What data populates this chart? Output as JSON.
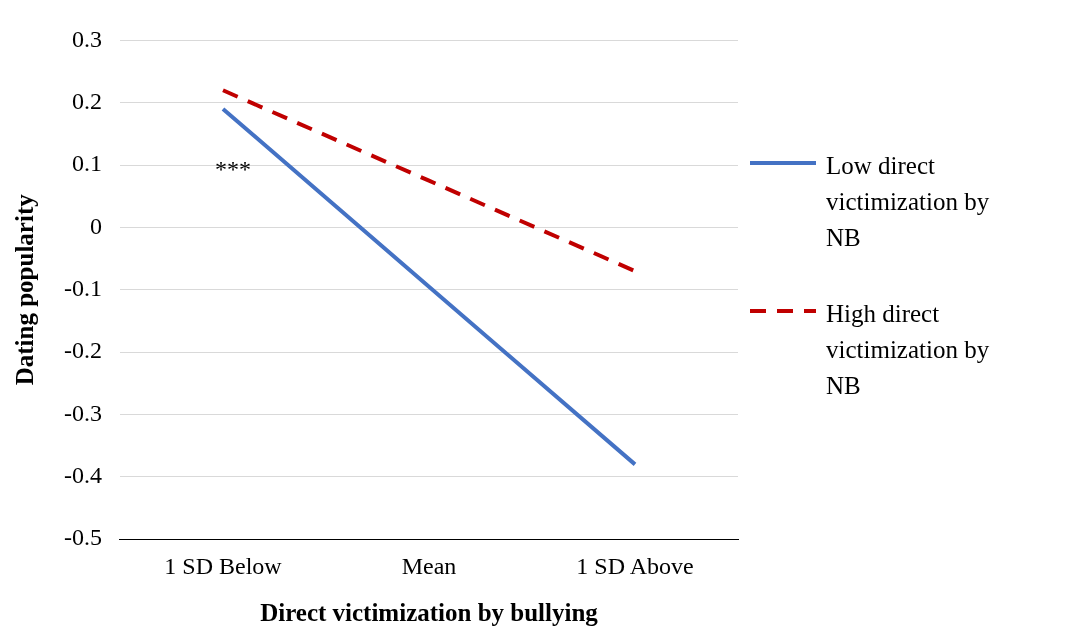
{
  "chart_data": {
    "type": "line",
    "xlabel": "Direct victimization by bullying",
    "ylabel": "Dating popularity",
    "categories": [
      "1 SD Below",
      "Mean",
      "1 SD Above"
    ],
    "series": [
      {
        "name": "Low direct victimization by NB",
        "color": "#4472c4",
        "values": [
          0.19,
          -0.095,
          -0.38
        ],
        "line_style": "solid"
      },
      {
        "name": "High direct victimization by NB",
        "color": "#c00000",
        "values": [
          0.22,
          0.075,
          -0.07
        ],
        "line_style": "dashed"
      }
    ],
    "ylim": [
      -0.5,
      0.3
    ],
    "yticks": [
      -0.5,
      -0.4,
      -0.3,
      -0.2,
      -0.1,
      0,
      0.1,
      0.2,
      0.3
    ],
    "grid": "y",
    "legend": "right",
    "marker": "none",
    "annotations": [
      "***"
    ]
  }
}
